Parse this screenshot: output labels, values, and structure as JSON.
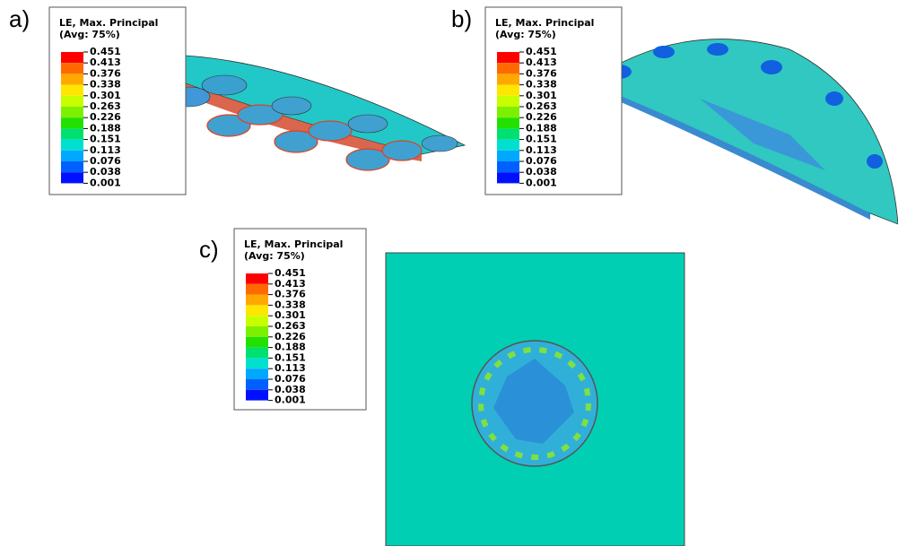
{
  "contour_colors": [
    "#ff0000",
    "#ff6a00",
    "#ffa800",
    "#ffe600",
    "#c8ff00",
    "#7cf000",
    "#22e000",
    "#00e070",
    "#00e0d0",
    "#00a8ff",
    "#0060ff",
    "#0010ff"
  ],
  "panels": [
    {
      "label": "a)",
      "legend_title": "LE, Max. Principal",
      "legend_subtitle": "(Avg: 75%)",
      "levels": [
        "0.451",
        "0.413",
        "0.376",
        "0.338",
        "0.301",
        "0.263",
        "0.226",
        "0.188",
        "0.151",
        "0.113",
        "0.076",
        "0.038",
        "0.001"
      ]
    },
    {
      "label": "b)",
      "legend_title": "LE, Max. Principal",
      "legend_subtitle": "(Avg: 75%)",
      "levels": [
        "0.451",
        "0.413",
        "0.376",
        "0.338",
        "0.301",
        "0.263",
        "0.226",
        "0.188",
        "0.151",
        "0.113",
        "0.076",
        "0.038",
        "0.001"
      ]
    },
    {
      "label": "c)",
      "legend_title": "LE, Max. Principal",
      "legend_subtitle": "(Avg: 75%)",
      "levels": [
        "0.451",
        "0.413",
        "0.376",
        "0.338",
        "0.301",
        "0.263",
        "0.226",
        "0.188",
        "0.151",
        "0.113",
        "0.076",
        "0.038",
        "0.001"
      ]
    }
  ]
}
